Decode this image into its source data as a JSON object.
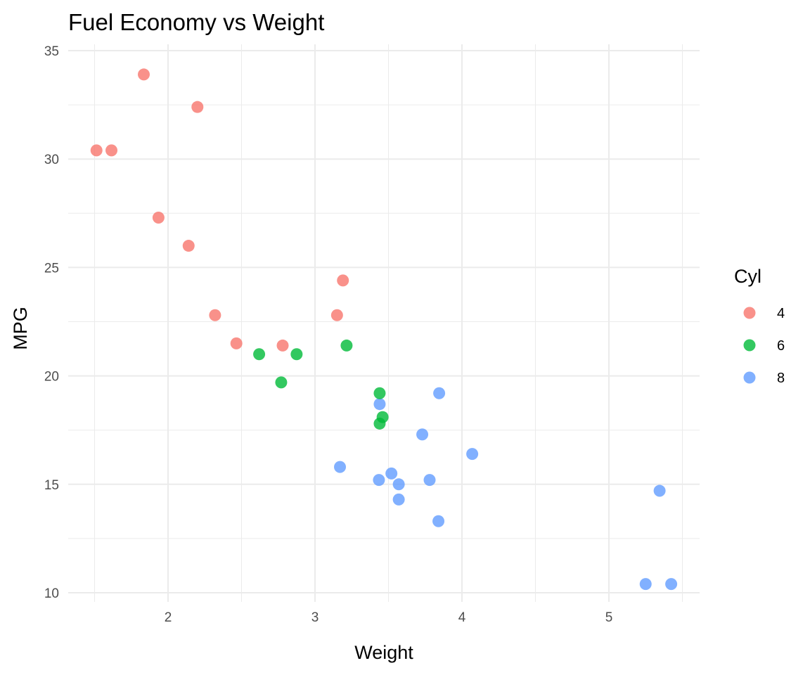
{
  "chart_data": {
    "type": "scatter",
    "title": "Fuel Economy vs Weight",
    "xlabel": "Weight",
    "ylabel": "MPG",
    "xlim": [
      1.3,
      5.6
    ],
    "ylim": [
      9.4,
      35.3
    ],
    "x_ticks": [
      "2",
      "3",
      "4",
      "5"
    ],
    "y_ticks": [
      "10",
      "15",
      "20",
      "25",
      "30",
      "35"
    ],
    "grid": true,
    "legend": {
      "title": "Cyl",
      "position": "right",
      "entries": [
        "4",
        "6",
        "8"
      ]
    },
    "colors": {
      "4": "#F8766D",
      "6": "#00BA38",
      "8": "#619CFF"
    },
    "points": [
      {
        "x": 2.62,
        "y": 21.0,
        "group": "6"
      },
      {
        "x": 2.875,
        "y": 21.0,
        "group": "6"
      },
      {
        "x": 2.32,
        "y": 22.8,
        "group": "4"
      },
      {
        "x": 3.215,
        "y": 21.4,
        "group": "6"
      },
      {
        "x": 3.44,
        "y": 18.7,
        "group": "8"
      },
      {
        "x": 3.46,
        "y": 18.1,
        "group": "6"
      },
      {
        "x": 3.57,
        "y": 14.3,
        "group": "8"
      },
      {
        "x": 3.19,
        "y": 24.4,
        "group": "4"
      },
      {
        "x": 3.15,
        "y": 22.8,
        "group": "4"
      },
      {
        "x": 3.44,
        "y": 19.2,
        "group": "6"
      },
      {
        "x": 3.44,
        "y": 17.8,
        "group": "6"
      },
      {
        "x": 4.07,
        "y": 16.4,
        "group": "8"
      },
      {
        "x": 3.73,
        "y": 17.3,
        "group": "8"
      },
      {
        "x": 3.78,
        "y": 15.2,
        "group": "8"
      },
      {
        "x": 5.25,
        "y": 10.4,
        "group": "8"
      },
      {
        "x": 5.424,
        "y": 10.4,
        "group": "8"
      },
      {
        "x": 5.345,
        "y": 14.7,
        "group": "8"
      },
      {
        "x": 2.2,
        "y": 32.4,
        "group": "4"
      },
      {
        "x": 1.615,
        "y": 30.4,
        "group": "4"
      },
      {
        "x": 1.835,
        "y": 33.9,
        "group": "4"
      },
      {
        "x": 2.465,
        "y": 21.5,
        "group": "4"
      },
      {
        "x": 3.52,
        "y": 15.5,
        "group": "8"
      },
      {
        "x": 3.435,
        "y": 15.2,
        "group": "8"
      },
      {
        "x": 3.84,
        "y": 13.3,
        "group": "8"
      },
      {
        "x": 3.845,
        "y": 19.2,
        "group": "8"
      },
      {
        "x": 1.935,
        "y": 27.3,
        "group": "4"
      },
      {
        "x": 2.14,
        "y": 26.0,
        "group": "4"
      },
      {
        "x": 1.513,
        "y": 30.4,
        "group": "4"
      },
      {
        "x": 3.17,
        "y": 15.8,
        "group": "8"
      },
      {
        "x": 2.77,
        "y": 19.7,
        "group": "6"
      },
      {
        "x": 3.57,
        "y": 15.0,
        "group": "8"
      },
      {
        "x": 2.78,
        "y": 21.4,
        "group": "4"
      }
    ]
  }
}
